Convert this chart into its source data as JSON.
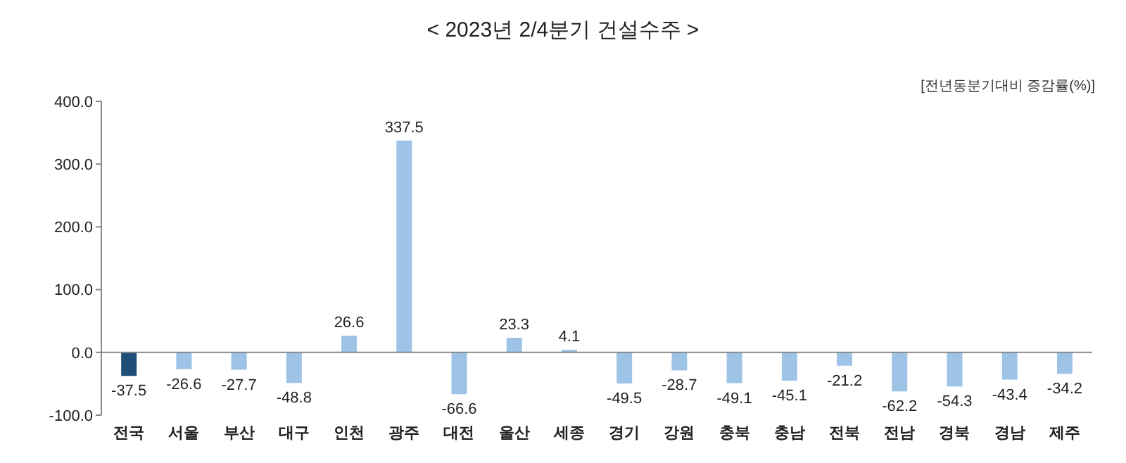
{
  "chart_data": {
    "type": "bar",
    "title": "< 2023년 2/4분기 건설수주 >",
    "annotations": [
      "[전년동분기대비 증감률(%)]"
    ],
    "categories": [
      "전국",
      "서울",
      "부산",
      "대구",
      "인천",
      "광주",
      "대전",
      "울산",
      "세종",
      "경기",
      "강원",
      "충북",
      "충남",
      "전북",
      "전남",
      "경북",
      "경남",
      "제주"
    ],
    "values": [
      -37.5,
      -26.6,
      -27.7,
      -48.8,
      26.6,
      337.5,
      -66.6,
      23.3,
      4.1,
      -49.5,
      -28.7,
      -49.1,
      -45.1,
      -21.2,
      -62.2,
      -54.3,
      -43.4,
      -34.2
    ],
    "colors": [
      "#1f4e79",
      "#9dc3e6",
      "#9dc3e6",
      "#9dc3e6",
      "#9dc3e6",
      "#9dc3e6",
      "#9dc3e6",
      "#9dc3e6",
      "#9dc3e6",
      "#9dc3e6",
      "#9dc3e6",
      "#9dc3e6",
      "#9dc3e6",
      "#9dc3e6",
      "#9dc3e6",
      "#9dc3e6",
      "#9dc3e6",
      "#9dc3e6"
    ],
    "ylim": [
      -100,
      400
    ],
    "yticks": [
      {
        "value": -100,
        "label": "-100.0"
      },
      {
        "value": 0,
        "label": "0.0"
      },
      {
        "value": 100,
        "label": "100.0"
      },
      {
        "value": 200,
        "label": "200.0"
      },
      {
        "value": 300,
        "label": "300.0"
      },
      {
        "value": 400,
        "label": "400.0"
      }
    ],
    "data_labels": true,
    "legend": false
  }
}
